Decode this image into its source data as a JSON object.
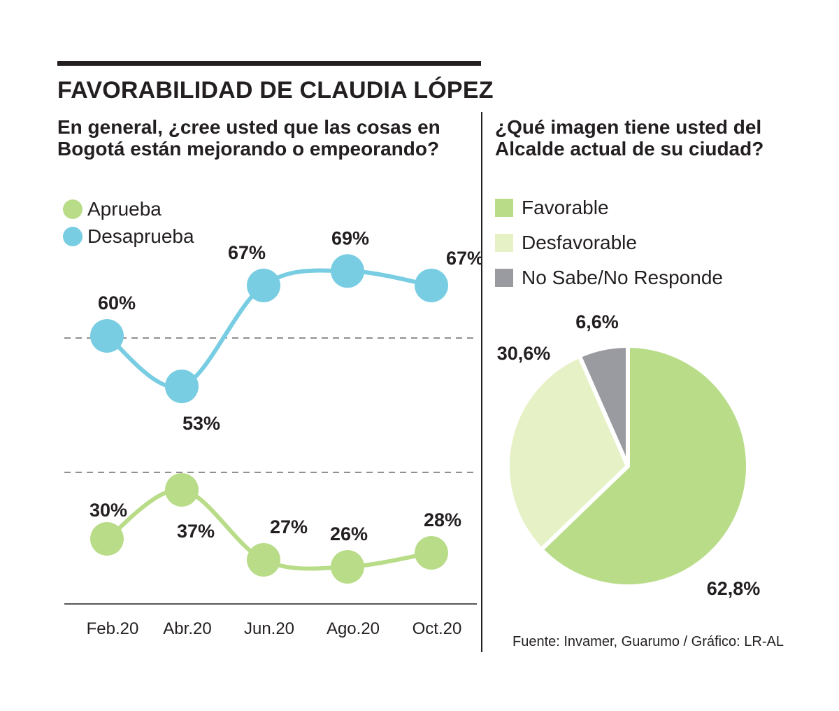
{
  "title": "FAVORABILIDAD DE CLAUDIA LÓPEZ",
  "left_question": "En general, ¿cree usted que las cosas en Bogotá están mejorando o empeorando?",
  "right_question": "¿Qué imagen tiene usted del Alcalde actual de su ciudad?",
  "source": "Fuente: Invamer, Guarumo / Gráfico: LR-AL",
  "colors": {
    "aprueba": "#b9dc89",
    "desaprueba": "#78cde2",
    "favorable": "#b9dc89",
    "desfavorable": "#e6f1c6",
    "no_sabe": "#9a9aa1",
    "text": "#231f20"
  },
  "chart_data": [
    {
      "type": "line",
      "categories": [
        "Feb.20",
        "Abr.20",
        "Jun.20",
        "Ago.20",
        "Oct.20"
      ],
      "series": [
        {
          "name": "Aprueba",
          "values": [
            30,
            37,
            27,
            26,
            28
          ],
          "labels": [
            "30%",
            "37%",
            "27%",
            "26%",
            "28%"
          ]
        },
        {
          "name": "Desaprueba",
          "values": [
            60,
            53,
            67,
            69,
            67
          ],
          "labels": [
            "60%",
            "53%",
            "67%",
            "69%",
            "67%"
          ]
        }
      ],
      "legend": [
        "Aprueba",
        "Desaprueba"
      ],
      "grid": "dashed reference lines"
    },
    {
      "type": "pie",
      "slices": [
        {
          "name": "Favorable",
          "value": 62.8,
          "label": "62,8%"
        },
        {
          "name": "Desfavorable",
          "value": 30.6,
          "label": "30,6%"
        },
        {
          "name": "No Sabe/No Responde",
          "value": 6.6,
          "label": "6,6%"
        }
      ],
      "legend": [
        "Favorable",
        "Desfavorable",
        "No Sabe/No Responde"
      ]
    }
  ]
}
